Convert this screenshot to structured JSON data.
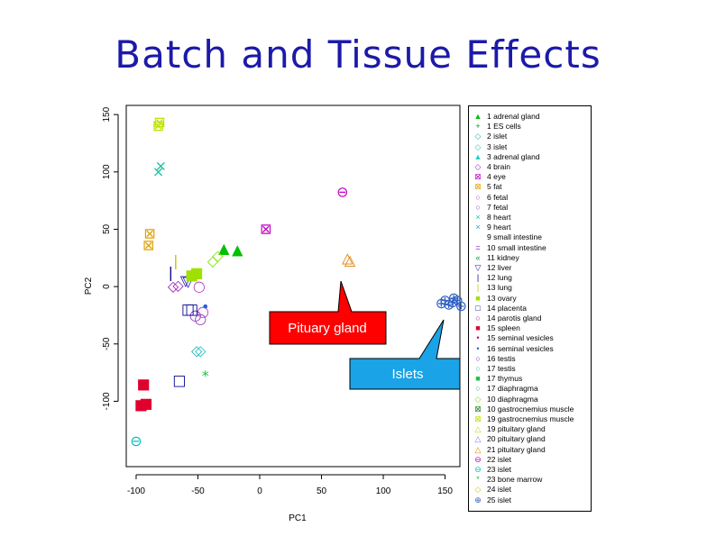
{
  "slide": {
    "title": "Batch and Tissue Effects"
  },
  "chart_data": {
    "type": "scatter",
    "xlabel": "PC1",
    "ylabel": "PC2",
    "xlim": [
      -100,
      150
    ],
    "ylim": [
      -150,
      150
    ],
    "xticks": [
      -100,
      -50,
      0,
      50,
      100,
      150
    ],
    "yticks": [
      -100,
      -50,
      0,
      50,
      100,
      150
    ],
    "grid": false,
    "legend_placement": "right",
    "series": [
      {
        "name": "1 adrenal gland",
        "symbol": "▲",
        "color": "#00c000",
        "points": [
          [
            -29,
            33
          ],
          [
            -18,
            32
          ]
        ]
      },
      {
        "name": "1 ES cells",
        "symbol": "+",
        "color": "#00a000",
        "points": []
      },
      {
        "name": "2 islet",
        "symbol": "◇",
        "color": "#20b0b0",
        "points": [
          [
            -51,
            -56
          ]
        ]
      },
      {
        "name": "3 islet",
        "symbol": "◇",
        "color": "#20c0c0",
        "points": [
          [
            -48,
            -56
          ]
        ]
      },
      {
        "name": "3 adrenal gland",
        "symbol": "▲",
        "color": "#20d0d0",
        "points": []
      },
      {
        "name": "4 brain",
        "symbol": "◇",
        "color": "#a020c0",
        "points": [
          [
            -70,
            0
          ],
          [
            -66,
            1
          ]
        ]
      },
      {
        "name": "4 eye",
        "symbol": "⊠",
        "color": "#c000c0",
        "points": [
          [
            5,
            50
          ]
        ]
      },
      {
        "name": "5 fat",
        "symbol": "⊠",
        "color": "#e0a000",
        "points": [
          [
            -90,
            36
          ],
          [
            -89,
            46
          ]
        ]
      },
      {
        "name": "6 fetal",
        "symbol": "○",
        "color": "#c040c0",
        "points": [
          [
            -49,
            0
          ],
          [
            -46,
            -22
          ]
        ]
      },
      {
        "name": "7 fetal",
        "symbol": "○",
        "color": "#9040c0",
        "points": [
          [
            -52,
            -25
          ],
          [
            -48,
            -28
          ]
        ]
      },
      {
        "name": "8 heart",
        "symbol": "×",
        "color": "#20c0a0",
        "points": [
          [
            -80,
            105
          ],
          [
            -82,
            100
          ]
        ]
      },
      {
        "name": "9 heart",
        "symbol": "×",
        "color": "#20a0c0",
        "points": []
      },
      {
        "name": "9 small intestine",
        "symbol": "",
        "color": "#000000",
        "points": []
      },
      {
        "name": "10 small intestine",
        "symbol": "=",
        "color": "#8000c0",
        "points": []
      },
      {
        "name": "11 kidney",
        "symbol": "«",
        "color": "#00a040",
        "points": []
      },
      {
        "name": "12 liver",
        "symbol": "▽",
        "color": "#2020c0",
        "points": [
          [
            -60,
            5
          ],
          [
            -58,
            4
          ]
        ]
      },
      {
        "name": "12 lung",
        "symbol": "|",
        "color": "#000080",
        "points": [
          [
            -72,
            12
          ]
        ]
      },
      {
        "name": "13 lung",
        "symbol": "|",
        "color": "#c0c000",
        "points": [
          [
            -68,
            22
          ]
        ]
      },
      {
        "name": "13 ovary",
        "symbol": "■",
        "color": "#a0e000",
        "points": [
          [
            -51,
            12
          ],
          [
            -55,
            10
          ]
        ]
      },
      {
        "name": "14 placenta",
        "symbol": "□",
        "color": "#000090",
        "points": [
          [
            -58,
            -20
          ],
          [
            -55,
            -20
          ],
          [
            -65,
            -82
          ]
        ]
      },
      {
        "name": "14 parotis gland",
        "symbol": "○",
        "color": "#c000c0",
        "points": []
      },
      {
        "name": "15 spleen",
        "symbol": "■",
        "color": "#e00030",
        "points": [
          [
            -94,
            -85
          ],
          [
            -96,
            -103
          ],
          [
            -92,
            -102
          ]
        ]
      },
      {
        "name": "15 seminal vesicles",
        "symbol": "•",
        "color": "#c00060",
        "points": []
      },
      {
        "name": "16 seminal vesicles",
        "symbol": "•",
        "color": "#2060e0",
        "points": [
          [
            -44,
            -18
          ]
        ]
      },
      {
        "name": "16 testis",
        "symbol": "○",
        "color": "#8020c0",
        "points": []
      },
      {
        "name": "17 testis",
        "symbol": "○",
        "color": "#40c0c0",
        "points": []
      },
      {
        "name": "17 thymus",
        "symbol": "■",
        "color": "#20c040",
        "points": []
      },
      {
        "name": "17 diaphragma",
        "symbol": "○",
        "color": "#20c080",
        "points": []
      },
      {
        "name": "10 diaphragma",
        "symbol": "◇",
        "color": "#80e000",
        "points": [
          [
            -34,
            27
          ],
          [
            -38,
            22
          ]
        ]
      },
      {
        "name": "10 gastrocnemius muscle",
        "symbol": "⊠",
        "color": "#208020",
        "points": []
      },
      {
        "name": "19 gastrocnemius muscle",
        "symbol": "⊠",
        "color": "#c0e000",
        "points": [
          [
            -82,
            140
          ],
          [
            -81,
            143
          ]
        ]
      },
      {
        "name": "19 pituitary gland",
        "symbol": "△",
        "color": "#d0d000",
        "points": []
      },
      {
        "name": "20 pituitary gland",
        "symbol": "△",
        "color": "#8080e0",
        "points": []
      },
      {
        "name": "21 pituitary gland",
        "symbol": "△",
        "color": "#e08000",
        "points": [
          [
            71,
            25
          ],
          [
            73,
            23
          ]
        ]
      },
      {
        "name": "22 islet",
        "symbol": "⊖",
        "color": "#c000c0",
        "points": [
          [
            67,
            82
          ]
        ]
      },
      {
        "name": "23 islet",
        "symbol": "⊖",
        "color": "#00c0c0",
        "points": [
          [
            -100,
            -135
          ]
        ]
      },
      {
        "name": "23 bone marrow",
        "symbol": "*",
        "color": "#20c040",
        "points": [
          [
            -44,
            -78
          ]
        ]
      },
      {
        "name": "24 islet",
        "symbol": "◇",
        "color": "#e0c000",
        "points": []
      },
      {
        "name": "25 islet",
        "symbol": "⊕",
        "color": "#3060c0",
        "points": [
          [
            147,
            -15
          ],
          [
            150,
            -12
          ],
          [
            153,
            -16
          ],
          [
            156,
            -14
          ],
          [
            160,
            -12
          ],
          [
            163,
            -17
          ],
          [
            157,
            -10
          ]
        ]
      }
    ],
    "annotations": [
      {
        "text": "Pituary gland",
        "color": "#ff0000"
      },
      {
        "text": "Islets",
        "color": "#1aa3e6"
      }
    ]
  }
}
